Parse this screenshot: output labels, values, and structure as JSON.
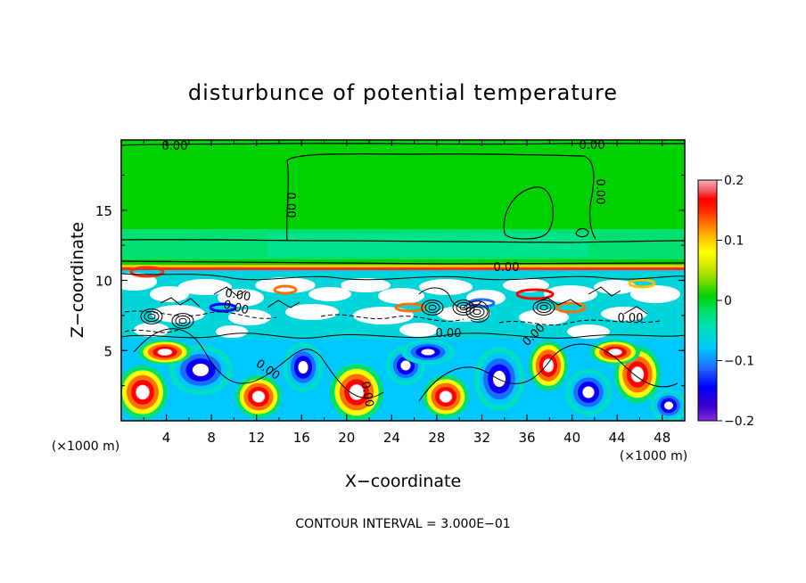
{
  "chart_data": {
    "type": "heatmap",
    "title": "disturbunce of potential temperature",
    "xlabel": "X−coordinate",
    "ylabel": "Z−coordinate",
    "x_unit": "(×1000 m)",
    "z_unit": "(×1000 m)",
    "x_ticks": [
      "4",
      "8",
      "12",
      "16",
      "20",
      "24",
      "28",
      "32",
      "36",
      "40",
      "44",
      "48"
    ],
    "z_ticks": [
      "5",
      "10",
      "15"
    ],
    "xlim": [
      0,
      50
    ],
    "zlim": [
      0,
      20
    ],
    "colorbar": {
      "min": -0.2,
      "max": 0.2,
      "tick_labels": [
        "0.2",
        "0.1",
        "0",
        "−0.1",
        "−0.2"
      ],
      "tick_values": [
        0.2,
        0.1,
        0,
        -0.1,
        -0.2
      ],
      "colors": [
        "#8a2be2",
        "#3a00c8",
        "#0000ff",
        "#1e6cff",
        "#00c8ff",
        "#00e0c0",
        "#00e070",
        "#00d200",
        "#7adc00",
        "#d2e600",
        "#ffff00",
        "#ffc000",
        "#ff7000",
        "#ff2000",
        "#ff0000",
        "#f06070",
        "#ffb0b0"
      ]
    },
    "contour_labels": [
      "0.00",
      "0.00",
      "0.00",
      "0.00",
      "0.00",
      "0.00",
      "0.00",
      "0.00",
      "0.00",
      "0.00",
      "0.00",
      "0.00"
    ],
    "footer": "CONTOUR INTERVAL = 3.000E−01"
  }
}
